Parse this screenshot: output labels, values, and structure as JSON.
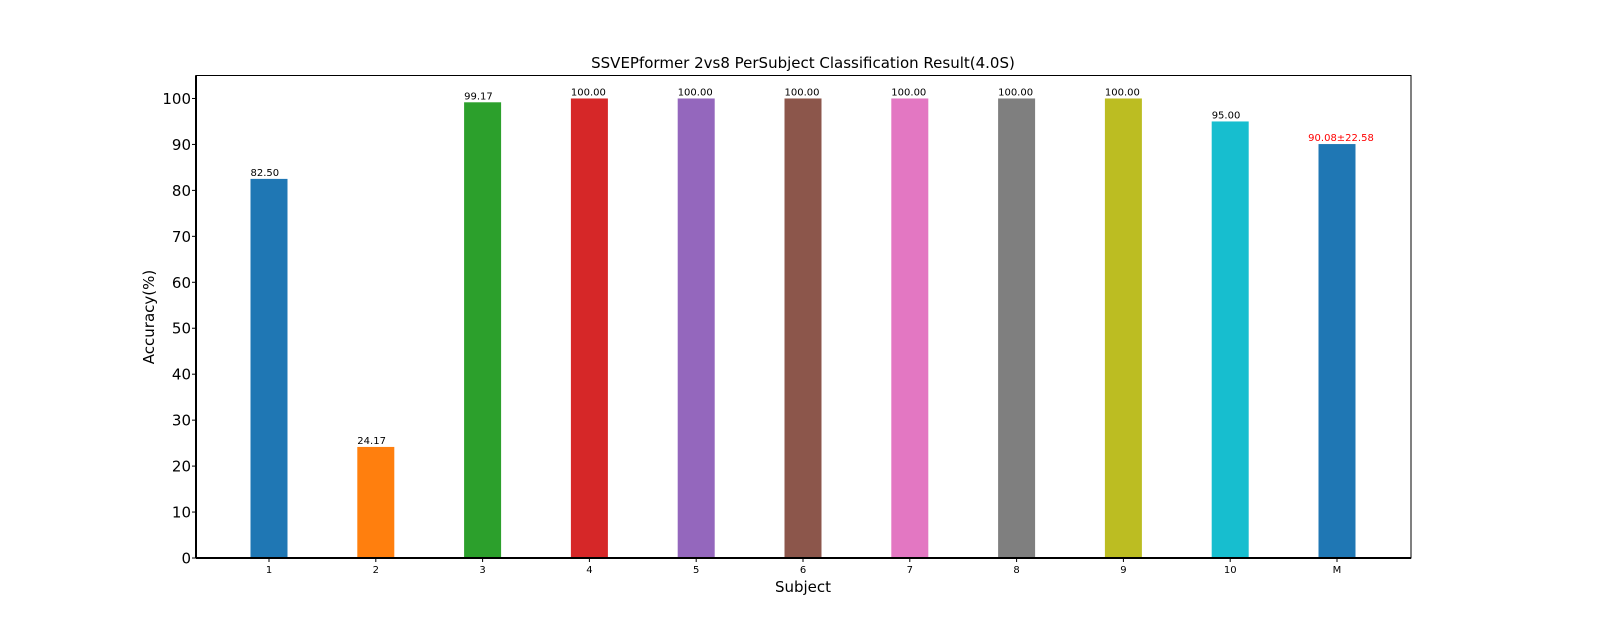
{
  "chart_data": {
    "type": "bar",
    "title": "SSVEPformer 2vs8 PerSubject Classification Result(4.0S)",
    "xlabel": "Subject",
    "ylabel": "Accuracy(%)",
    "ylim": [
      0,
      105
    ],
    "yticks": [
      0,
      10,
      20,
      30,
      40,
      50,
      60,
      70,
      80,
      90,
      100
    ],
    "grid": false,
    "legend": "none",
    "categories": [
      "1",
      "2",
      "3",
      "4",
      "5",
      "6",
      "7",
      "8",
      "9",
      "10",
      "M"
    ],
    "values": [
      82.5,
      24.17,
      99.17,
      100.0,
      100.0,
      100.0,
      100.0,
      100.0,
      100.0,
      95.0,
      90.08
    ],
    "data_labels": [
      "82.50",
      "24.17",
      "99.17",
      "100.00",
      "100.00",
      "100.00",
      "100.00",
      "100.00",
      "100.00",
      "95.00",
      "90.08±22.58"
    ],
    "colors": [
      "#1f77b4",
      "#ff7f0e",
      "#2ca02c",
      "#d62728",
      "#9467bd",
      "#8c564b",
      "#e377c2",
      "#7f7f7f",
      "#bcbd22",
      "#17becf",
      "#1f77b4"
    ],
    "label_colors": [
      "#000000",
      "#000000",
      "#000000",
      "#000000",
      "#000000",
      "#000000",
      "#000000",
      "#000000",
      "#000000",
      "#000000",
      "#ff0000"
    ]
  }
}
